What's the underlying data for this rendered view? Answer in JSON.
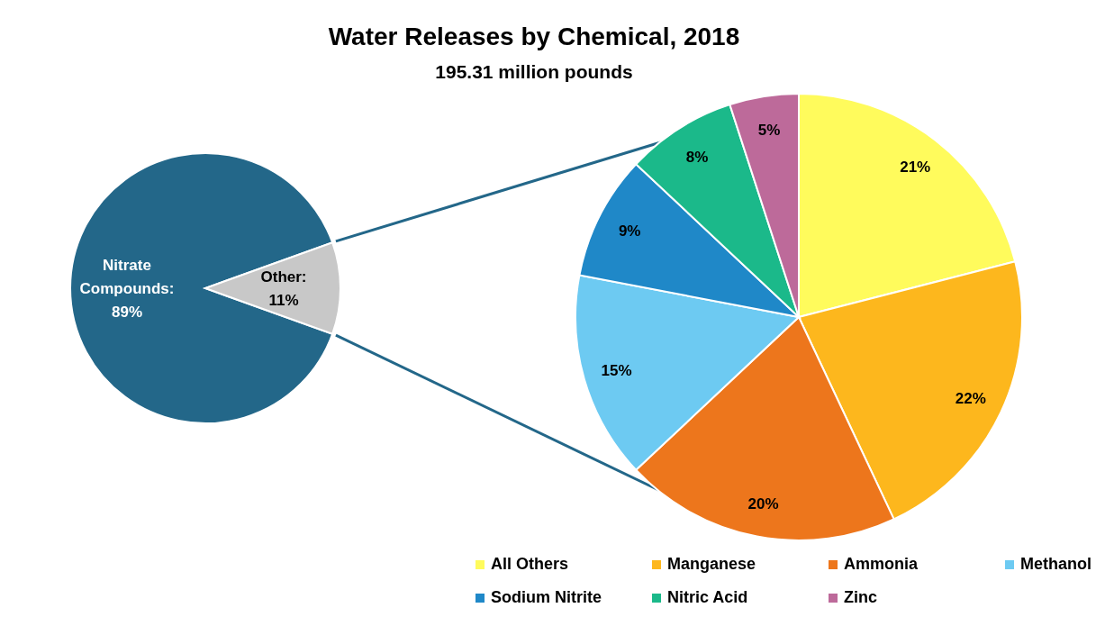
{
  "chart_data": [
    {
      "type": "pie",
      "title": "Water Releases by Chemical, 2018",
      "subtitle": "195.31 million pounds",
      "categories": [
        null,
        null
      ],
      "values": [
        89,
        11
      ],
      "value_labels": [
        "Nitrate Compounds: 89%",
        "Other: 11%"
      ],
      "colors": [
        "#236789",
        "#c8c8c8"
      ],
      "legend": false
    },
    {
      "type": "pie",
      "categories": [
        "All Others",
        "Manganese",
        "Ammonia",
        "Methanol",
        "Sodium Nitrite",
        "Nitric Acid",
        "Zinc"
      ],
      "values": [
        21,
        22,
        20,
        15,
        9,
        8,
        5
      ],
      "value_labels": [
        "21%",
        "22%",
        "20%",
        "15%",
        "9%",
        "8%",
        "5%"
      ],
      "colors": [
        "#fffb5c",
        "#fdb71d",
        "#ed761c",
        "#6dcaf2",
        "#1f88c8",
        "#1bb98a",
        "#bd6a9a"
      ],
      "legend": "bottom"
    }
  ]
}
